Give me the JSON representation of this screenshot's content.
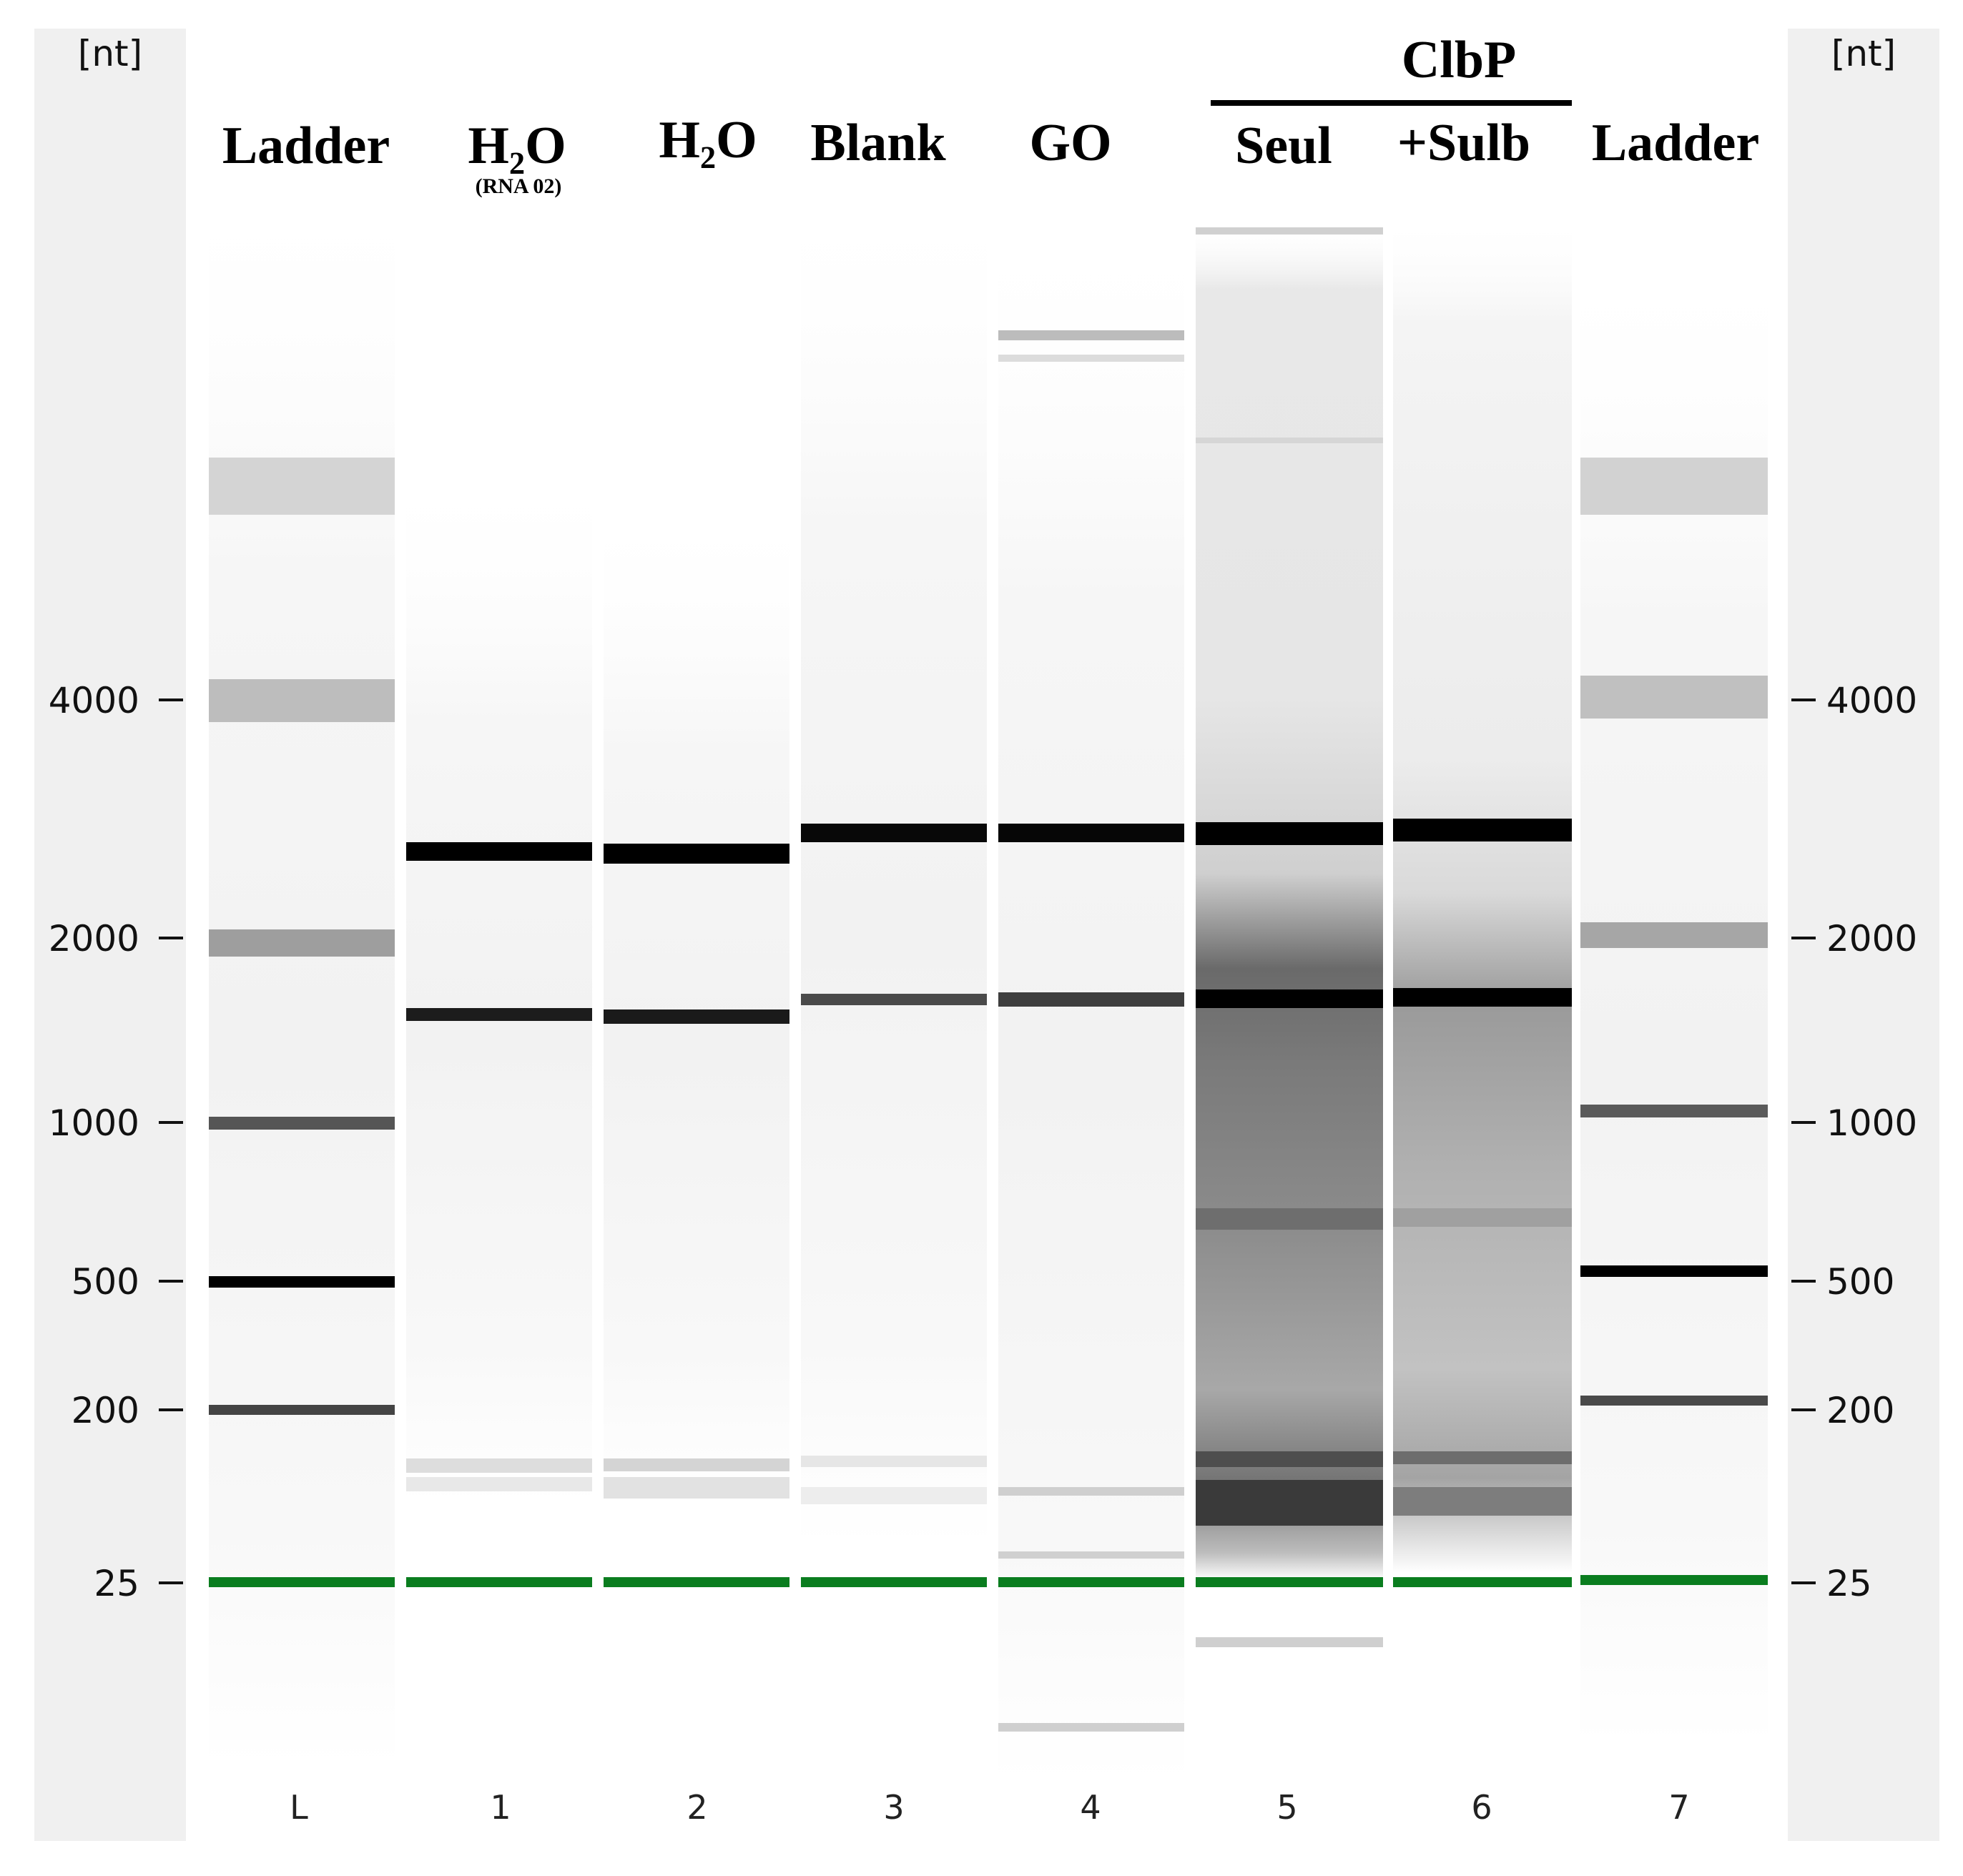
{
  "unit_label": "[nt]",
  "size_markers": [
    "4000",
    "2000",
    "1000",
    "500",
    "200",
    "25"
  ],
  "group_label": "ClbP",
  "lanes": [
    {
      "number": "L",
      "header": "Ladder",
      "sub": ""
    },
    {
      "number": "1",
      "header": "H₂O",
      "sub": "(RNA 02)"
    },
    {
      "number": "2",
      "header": "H₂O",
      "sub": ""
    },
    {
      "number": "3",
      "header": "Blank",
      "sub": ""
    },
    {
      "number": "4",
      "header": "GO",
      "sub": ""
    },
    {
      "number": "5",
      "header": "Seul",
      "sub": ""
    },
    {
      "number": "6",
      "header": "+Sulb",
      "sub": ""
    },
    {
      "number": "7",
      "header": "Ladder",
      "sub": ""
    }
  ],
  "colors": {
    "axis_panel": "#f0f0f0",
    "lower_marker": "#0a7d1f",
    "band": "#000000"
  }
}
